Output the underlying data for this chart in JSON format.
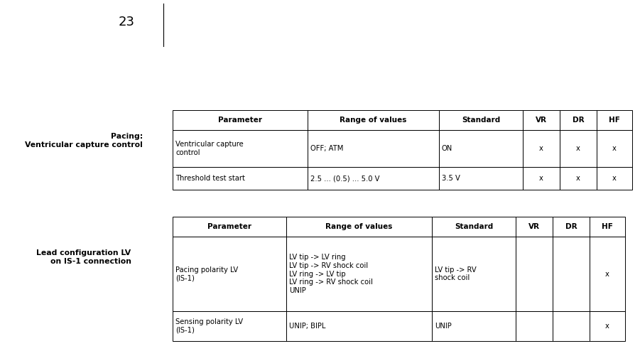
{
  "page_number": "23",
  "bg_color": "#ffffff",
  "section1_label": "Pacing:\nVentricular capture control",
  "section2_label": "Lead configuration LV\non IS-1 connection",
  "table1_headers": [
    "Parameter",
    "Range of values",
    "Standard",
    "VR",
    "DR",
    "HF"
  ],
  "table1_rows": [
    [
      "Ventricular capture\ncontrol",
      "OFF; ATM",
      "ON",
      "x",
      "x",
      "x"
    ],
    [
      "Threshold test start",
      "2.5 ... (0.5) ... 5.0 V",
      "3.5 V",
      "x",
      "x",
      "x"
    ]
  ],
  "table2_headers": [
    "Parameter",
    "Range of values",
    "Standard",
    "VR",
    "DR",
    "HF"
  ],
  "table2_rows": [
    [
      "Pacing polarity LV\n(IS-1)",
      "LV tip -> LV ring\nLV tip -> RV shock coil\nLV ring -> LV tip\nLV ring -> RV shock coil\nUNIP",
      "LV tip -> RV\nshock coil",
      "",
      "",
      "x"
    ],
    [
      "Sensing polarity LV\n(IS-1)",
      "UNIP; BIPL",
      "UNIP",
      "",
      "",
      "x"
    ]
  ],
  "header_font_size": 7.5,
  "body_font_size": 7.2,
  "label_font_size": 7.8,
  "page_font_size": 13
}
